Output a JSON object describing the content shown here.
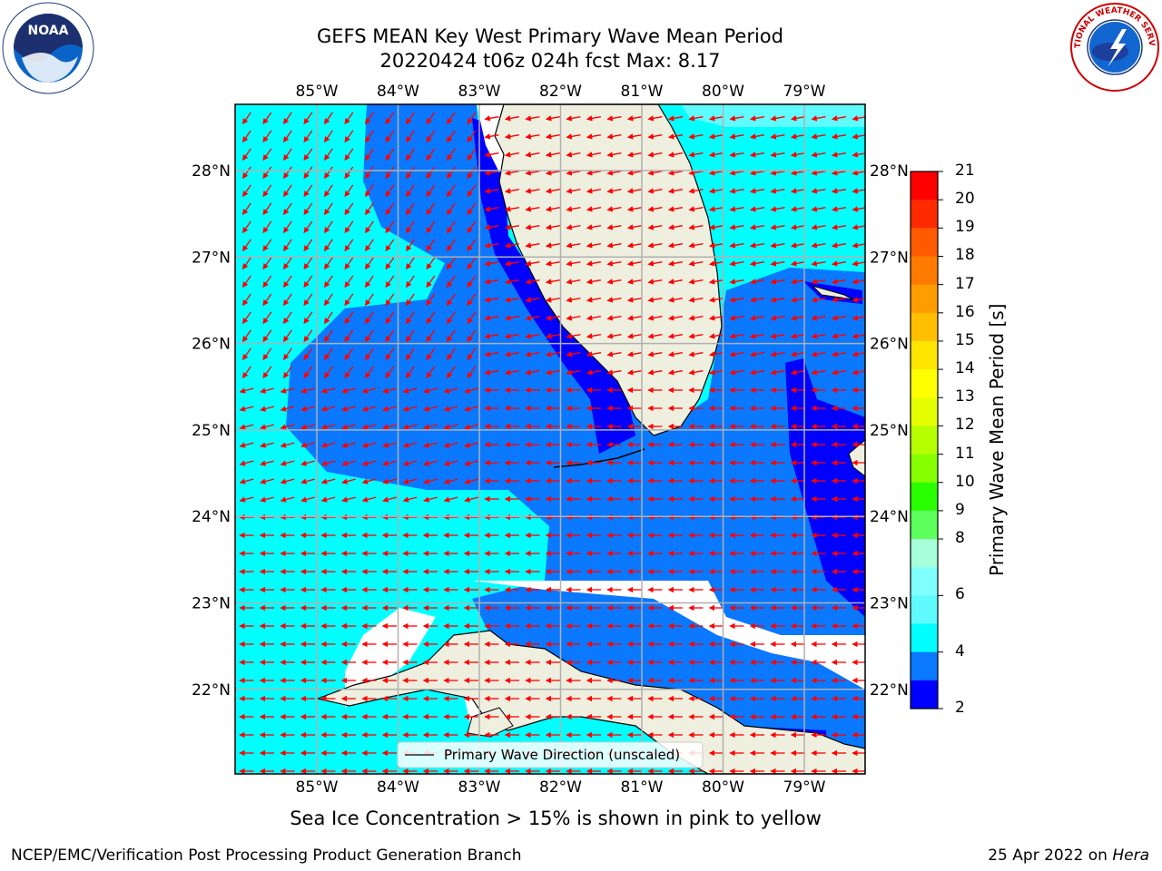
{
  "title_line1": "GEFS MEAN Key West Primary Wave Mean Period",
  "title_line2": "20220424 t06z 024h fcst   Max: 8.17",
  "logos": {
    "left": "NOAA",
    "right": "NATIONAL WEATHER SERVICE"
  },
  "map": {
    "lon_ticks": [
      "85°W",
      "84°W",
      "83°W",
      "82°W",
      "81°W",
      "80°W",
      "79°W"
    ],
    "lat_ticks": [
      "28°N",
      "27°N",
      "26°N",
      "25°N",
      "24°N",
      "23°N",
      "22°N"
    ],
    "legend_label": "Primary Wave Direction (unscaled)",
    "colors": {
      "land": "#efefdf",
      "band_2_4": "#0000ff",
      "band_4_6": "#0a78ff",
      "band_6_8": "#00ffff",
      "band_8_9": "#5ffbff",
      "arrow": "#ff0000",
      "grid": "#b0b0b0"
    }
  },
  "colorbar": {
    "label": "Primary Wave Mean Period [s]",
    "ticks": [
      "21",
      "20",
      "19",
      "18",
      "17",
      "16",
      "15",
      "14",
      "13",
      "12",
      "11",
      "10",
      "9",
      "8",
      "6",
      "4",
      "2"
    ],
    "colors_top_to_bottom": [
      "#ff0000",
      "#ff2a00",
      "#ff5a00",
      "#ff7a00",
      "#ff9c00",
      "#ffbf00",
      "#ffe600",
      "#ffff00",
      "#e6ff00",
      "#b6ff00",
      "#86ff00",
      "#2aff00",
      "#5cff5c",
      "#a6ffd8",
      "#80ffff",
      "#5ffbff",
      "#00ffff",
      "#0a78ff",
      "#0000ff"
    ]
  },
  "footer_note": "Sea Ice Concentration > 15% is shown in pink to yellow",
  "footer_left": "NCEP/EMC/Verification Post Processing Product Generation Branch",
  "footer_date": "25 Apr 2022 on",
  "footer_machine": "Hera"
}
